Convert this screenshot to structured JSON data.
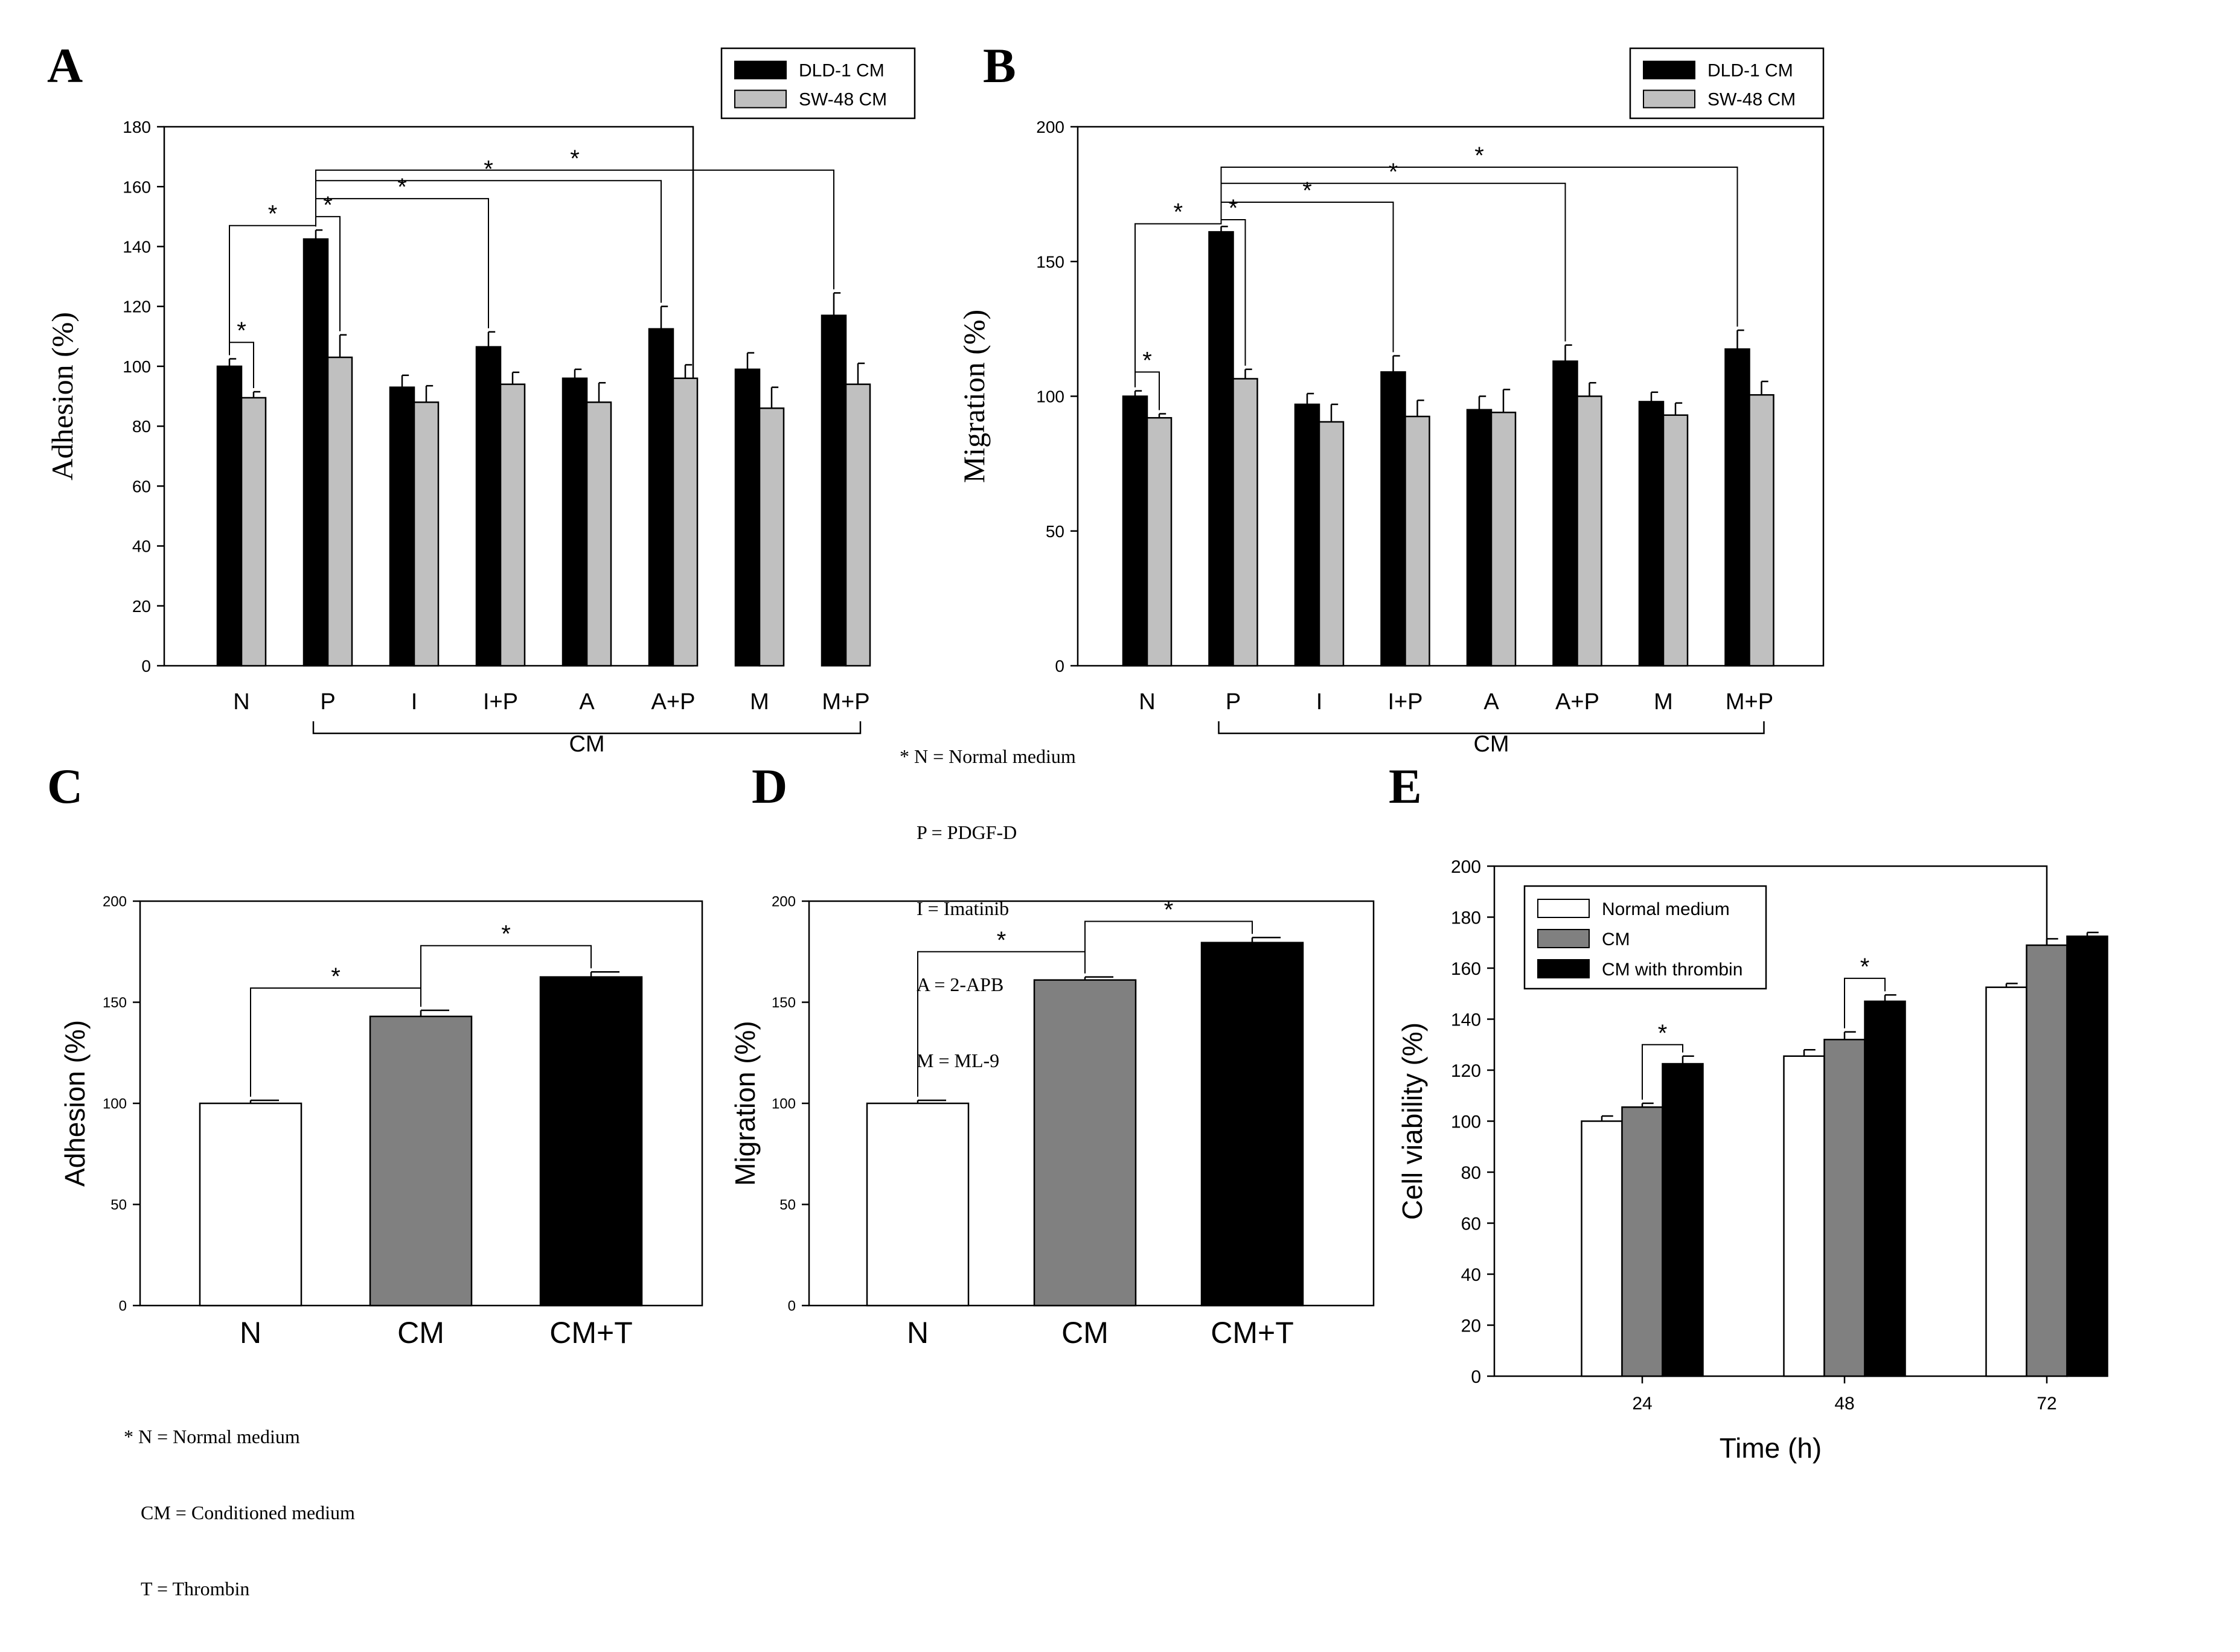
{
  "panel_labels": [
    "A",
    "B",
    "C",
    "D",
    "E"
  ],
  "notes": {
    "ab": [
      "* N = Normal medium",
      "P = PDGF-D",
      "I = Imatinib",
      "A = 2-APB",
      "M = ML-9"
    ],
    "cd": [
      "* N = Normal medium",
      "CM = Conditioned medium",
      "T = Thrombin"
    ]
  },
  "chart_data": [
    {
      "panel": "A",
      "type": "bar",
      "title": "",
      "ylabel": "Adhesion (%)",
      "xlabel": "",
      "ylim": [
        0,
        180
      ],
      "yticks": [
        0,
        20,
        40,
        60,
        80,
        100,
        120,
        140,
        160,
        180
      ],
      "categories": [
        "N",
        "P",
        "I",
        "I+P",
        "A",
        "A+P",
        "M",
        "M+P"
      ],
      "group_label": "CM",
      "series": [
        {
          "name": "DLD-1 CM",
          "color": "#000000",
          "values": [
            100,
            142.5,
            93,
            106.5,
            96,
            112.5,
            99,
            117
          ],
          "errors": [
            2.5,
            3,
            4,
            5,
            3,
            7.5,
            5.5,
            7.5
          ]
        },
        {
          "name": "SW-48 CM",
          "color": "#c0c0c0",
          "values": [
            89.5,
            103,
            88,
            94,
            88,
            96,
            86,
            94
          ],
          "errors": [
            2,
            7.5,
            5.5,
            4,
            6.5,
            4.5,
            7,
            7
          ]
        }
      ],
      "significance": [
        {
          "from": [
            0,
            0
          ],
          "to": [
            0,
            1
          ],
          "y": 108,
          "label": "*"
        },
        {
          "from": [
            0,
            0
          ],
          "to": [
            1,
            0
          ],
          "y": 147,
          "label": "*"
        },
        {
          "from": [
            1,
            0
          ],
          "to": [
            1,
            1
          ],
          "y": 150,
          "label": "*"
        },
        {
          "from": [
            1,
            0
          ],
          "to": [
            3,
            0
          ],
          "y": 156,
          "label": "*"
        },
        {
          "from": [
            1,
            0
          ],
          "to": [
            5,
            0
          ],
          "y": 162,
          "label": "*"
        },
        {
          "from": [
            1,
            0
          ],
          "to": [
            7,
            0
          ],
          "y": 165.5,
          "label": "*"
        }
      ]
    },
    {
      "panel": "B",
      "type": "bar",
      "title": "",
      "ylabel": "Migration (%)",
      "xlabel": "",
      "ylim": [
        0,
        200
      ],
      "yticks": [
        0,
        50,
        100,
        150,
        200
      ],
      "categories": [
        "N",
        "P",
        "I",
        "I+P",
        "A",
        "A+P",
        "M",
        "M+P"
      ],
      "group_label": "CM",
      "series": [
        {
          "name": "DLD-1 CM",
          "color": "#000000",
          "values": [
            100,
            161,
            97,
            109,
            95,
            113,
            98,
            117.5
          ],
          "errors": [
            2,
            2,
            4,
            6,
            5,
            6,
            3.5,
            7
          ]
        },
        {
          "name": "SW-48 CM",
          "color": "#c0c0c0",
          "values": [
            92,
            106.5,
            90.5,
            92.5,
            94,
            100,
            93,
            100.5
          ],
          "errors": [
            1.5,
            3.5,
            6.5,
            6,
            8.5,
            5,
            4.5,
            5
          ]
        }
      ],
      "significance": [
        {
          "from": [
            0,
            0
          ],
          "to": [
            0,
            1
          ],
          "y": 109,
          "label": "*"
        },
        {
          "from": [
            0,
            0
          ],
          "to": [
            1,
            0
          ],
          "y": 164,
          "label": "*"
        },
        {
          "from": [
            1,
            0
          ],
          "to": [
            1,
            1
          ],
          "y": 165.5,
          "label": "*"
        },
        {
          "from": [
            1,
            0
          ],
          "to": [
            3,
            0
          ],
          "y": 172,
          "label": "*"
        },
        {
          "from": [
            1,
            0
          ],
          "to": [
            5,
            0
          ],
          "y": 179,
          "label": "*"
        },
        {
          "from": [
            1,
            0
          ],
          "to": [
            7,
            0
          ],
          "y": 185,
          "label": "*"
        }
      ]
    },
    {
      "panel": "C",
      "type": "bar",
      "title": "",
      "ylabel": "Adhesion (%)",
      "xlabel": "",
      "ylim": [
        0,
        200
      ],
      "yticks": [
        0,
        50,
        100,
        150,
        200
      ],
      "categories": [
        "N",
        "CM",
        "CM+T"
      ],
      "colors": [
        "#ffffff",
        "#808080",
        "#000000"
      ],
      "values": [
        100,
        143,
        162.5
      ],
      "errors": [
        1.5,
        3,
        2.5
      ],
      "significance": [
        {
          "from": 0,
          "to": 1,
          "y": 157,
          "label": "*"
        },
        {
          "from": 1,
          "to": 2,
          "y": 178,
          "label": "*"
        }
      ]
    },
    {
      "panel": "D",
      "type": "bar",
      "title": "",
      "ylabel": "Migration (%)",
      "xlabel": "",
      "ylim": [
        0,
        200
      ],
      "yticks": [
        0,
        50,
        100,
        150,
        200
      ],
      "categories": [
        "N",
        "CM",
        "CM+T"
      ],
      "colors": [
        "#ffffff",
        "#808080",
        "#000000"
      ],
      "values": [
        100,
        161,
        179.5
      ],
      "errors": [
        1.5,
        1.5,
        2.5
      ],
      "significance": [
        {
          "from": 0,
          "to": 1,
          "y": 175,
          "label": "*"
        },
        {
          "from": 1,
          "to": 2,
          "y": 190,
          "label": "*"
        }
      ]
    },
    {
      "panel": "E",
      "type": "bar",
      "title": "",
      "ylabel": "Cell viability (%)",
      "xlabel": "Time (h)",
      "ylim": [
        0,
        200
      ],
      "yticks": [
        0,
        20,
        40,
        60,
        80,
        100,
        120,
        140,
        160,
        180,
        200
      ],
      "categories": [
        "24",
        "48",
        "72"
      ],
      "legend_position": "top-left",
      "series": [
        {
          "name": "Normal medium",
          "color": "#ffffff",
          "values": [
            100,
            125.5,
            152.5
          ],
          "errors": [
            2,
            2.5,
            1.5
          ]
        },
        {
          "name": "CM",
          "color": "#808080",
          "values": [
            105.5,
            132,
            169
          ],
          "errors": [
            1.5,
            3,
            2.5
          ]
        },
        {
          "name": "CM with thrombin",
          "color": "#000000",
          "values": [
            122.5,
            147,
            172.5
          ],
          "errors": [
            3,
            2.5,
            1.5
          ]
        }
      ],
      "significance": [
        {
          "from": [
            0,
            1
          ],
          "to": [
            0,
            2
          ],
          "y": 130,
          "label": "*"
        },
        {
          "from": [
            1,
            1
          ],
          "to": [
            1,
            2
          ],
          "y": 156,
          "label": "*"
        }
      ]
    }
  ]
}
